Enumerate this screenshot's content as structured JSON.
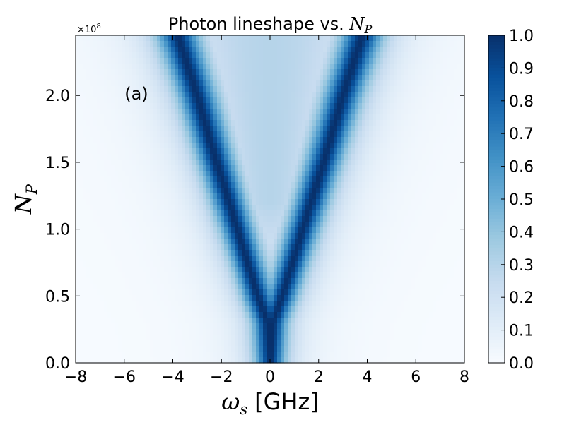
{
  "chart_data": {
    "type": "heatmap",
    "title": {
      "text": "Photon lineshape vs. ",
      "math_symbol": "N",
      "math_subscript": "P"
    },
    "xlabel": {
      "math_symbol": "ω",
      "math_subscript": "s",
      "text": "[GHz]"
    },
    "ylabel": {
      "math_symbol": "N",
      "math_subscript": "P"
    },
    "xlim": [
      -8,
      8
    ],
    "ylim": [
      0,
      2.45
    ],
    "y_scale_multiplier": {
      "base": "×10",
      "exponent": "8"
    },
    "x_ticks": [
      {
        "value": -8,
        "label": "−8"
      },
      {
        "value": -6,
        "label": "−6"
      },
      {
        "value": -4,
        "label": "−4"
      },
      {
        "value": -2,
        "label": "−2"
      },
      {
        "value": 0,
        "label": "0"
      },
      {
        "value": 2,
        "label": "2"
      },
      {
        "value": 4,
        "label": "4"
      },
      {
        "value": 6,
        "label": "6"
      },
      {
        "value": 8,
        "label": "8"
      }
    ],
    "y_ticks": [
      {
        "value": 0.0,
        "label": "0.0"
      },
      {
        "value": 0.5,
        "label": "0.5"
      },
      {
        "value": 1.0,
        "label": "1.0"
      },
      {
        "value": 1.5,
        "label": "1.5"
      },
      {
        "value": 2.0,
        "label": "2.0"
      }
    ],
    "annotation": {
      "text": "(a)",
      "x": -5.5,
      "y": 2.0
    },
    "colormap": "Blues",
    "colorbar": {
      "range": [
        0.0,
        1.0
      ],
      "ticks": [
        {
          "value": 0.0,
          "label": "0.0"
        },
        {
          "value": 0.1,
          "label": "0.1"
        },
        {
          "value": 0.2,
          "label": "0.2"
        },
        {
          "value": 0.3,
          "label": "0.3"
        },
        {
          "value": 0.4,
          "label": "0.4"
        },
        {
          "value": 0.5,
          "label": "0.5"
        },
        {
          "value": 0.6,
          "label": "0.6"
        },
        {
          "value": 0.7,
          "label": "0.7"
        },
        {
          "value": 0.8,
          "label": "0.8"
        },
        {
          "value": 0.9,
          "label": "0.9"
        },
        {
          "value": 1.0,
          "label": "1.0"
        }
      ]
    },
    "lineshape_model": {
      "description": "Two Lorentzian peaks splitting symmetrically with N_P, value normalized to 1 at peak",
      "peak_centers_GHz": [
        {
          "N_P": 0.0,
          "center": 0.0
        },
        {
          "N_P": 0.3,
          "center": 0.1
        },
        {
          "N_P": 0.5,
          "center": 0.5
        },
        {
          "N_P": 1.0,
          "center": 1.35
        },
        {
          "N_P": 1.5,
          "center": 2.2
        },
        {
          "N_P": 2.0,
          "center": 3.0
        },
        {
          "N_P": 2.45,
          "center": 3.8
        }
      ],
      "peak_half_width_GHz": 0.75,
      "center_fill_fraction_at_top": 0.3
    }
  }
}
